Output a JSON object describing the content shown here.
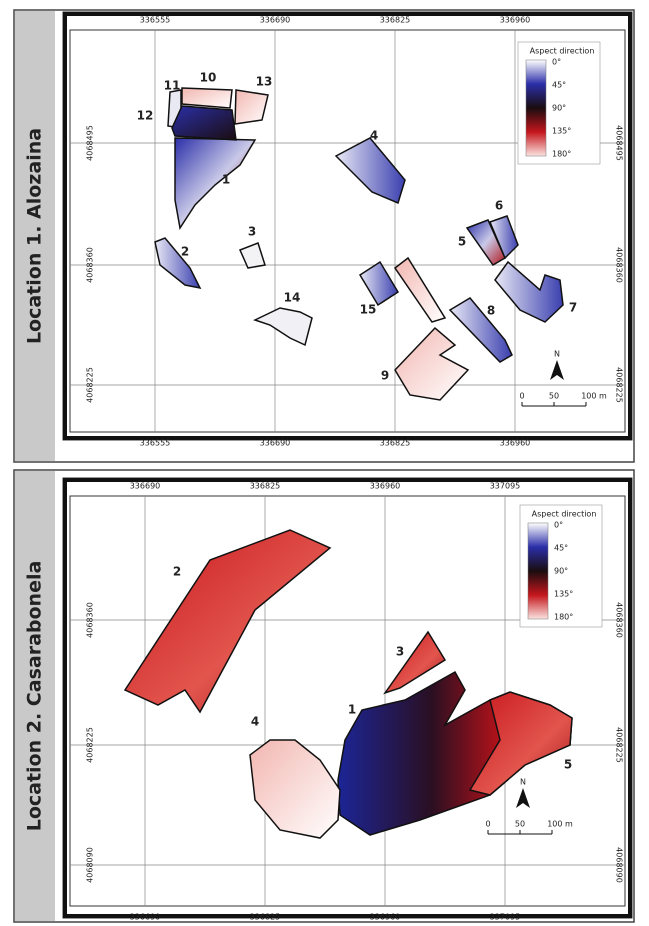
{
  "panels": [
    {
      "side_label": "Location 1.  Alozaina",
      "x_ticks": [
        "336555",
        "336690",
        "336825",
        "336960"
      ],
      "y_ticks": [
        "4068495",
        "4068360",
        "4068225"
      ],
      "legend": {
        "title": "Aspect direction",
        "labels": [
          "0°",
          "45°",
          "90°",
          "135°",
          "180°"
        ]
      },
      "parcels": [
        "1",
        "2",
        "3",
        "4",
        "5",
        "6",
        "7",
        "8",
        "9",
        "10",
        "11",
        "12",
        "13",
        "14",
        "15"
      ],
      "scale": {
        "north": "N",
        "labels": [
          "0",
          "50",
          "100 m"
        ]
      }
    },
    {
      "side_label": "Location 2.  Casarabonela",
      "x_ticks": [
        "336690",
        "336825",
        "336960",
        "337095"
      ],
      "y_ticks": [
        "4068360",
        "4068225",
        "4068090"
      ],
      "legend": {
        "title": "Aspect direction",
        "labels": [
          "0°",
          "45°",
          "90°",
          "135°",
          "180°"
        ]
      },
      "parcels": [
        "1",
        "2",
        "3",
        "4",
        "5"
      ],
      "scale": {
        "north": "N",
        "labels": [
          "0",
          "50",
          "100 m"
        ]
      }
    }
  ]
}
